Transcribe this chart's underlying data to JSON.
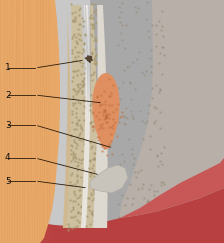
{
  "bg_color": "#c8c8c8",
  "skin_color": "#e8a868",
  "skin_stripe_color": "#c88040",
  "bone_dot_color": "#b0a080",
  "bone_fill_color": "#ccc0a0",
  "periosteum_color": "#d8ccc0",
  "periosteum_line_color": "#b0a898",
  "white_layer_color": "#e8e4dc",
  "fat_color": "#e09060",
  "fat_spot_color": "#c07040",
  "adhesive_color": "#c8c4bc",
  "gray_orbital": "#a8a8a8",
  "red_tissue": "#b84040",
  "red_tissue2": "#c85858",
  "label_color": "#111111",
  "line_color": "#2a1a0a",
  "figsize": [
    2.24,
    2.43
  ],
  "dpi": 100
}
